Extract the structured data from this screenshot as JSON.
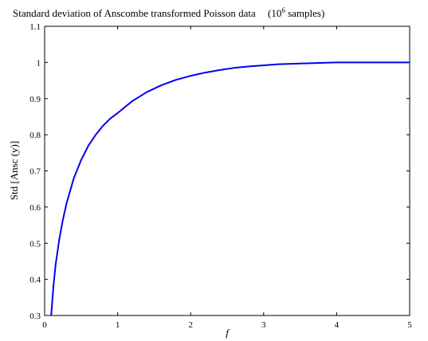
{
  "chart_data": {
    "type": "line",
    "title": "Standard deviation of Anscombe transformed Poisson data",
    "title_note": "(10",
    "title_note_sup": "6",
    "title_note_tail": " samples)",
    "xlabel": "f",
    "ylabel": "Std [Ansc (y)]",
    "xlim": [
      0,
      5
    ],
    "ylim": [
      0.3,
      1.1
    ],
    "grid": false,
    "box": true,
    "x_ticks": [
      0,
      1,
      2,
      3,
      4,
      5
    ],
    "x_tick_labels": [
      "0",
      "1",
      "2",
      "3",
      "4",
      "5"
    ],
    "y_ticks": [
      0.3,
      0.4,
      0.5,
      0.6,
      0.7,
      0.8,
      0.9,
      1.0,
      1.1
    ],
    "y_tick_labels": [
      "0.3",
      "0.4",
      "0.5",
      "0.6",
      "0.7",
      "0.8",
      "0.9",
      "1",
      "1.1"
    ],
    "series": [
      {
        "color": "#0000ee",
        "x": [
          0.09,
          0.12,
          0.15,
          0.2,
          0.25,
          0.3,
          0.4,
          0.5,
          0.6,
          0.7,
          0.8,
          0.9,
          1.0,
          1.2,
          1.4,
          1.6,
          1.8,
          2.0,
          2.2,
          2.4,
          2.6,
          2.8,
          3.0,
          3.2,
          3.5,
          3.8,
          4.0,
          4.3,
          4.6,
          5.0
        ],
        "y": [
          0.3,
          0.38,
          0.44,
          0.51,
          0.565,
          0.61,
          0.68,
          0.73,
          0.77,
          0.8,
          0.825,
          0.845,
          0.86,
          0.893,
          0.918,
          0.937,
          0.952,
          0.963,
          0.972,
          0.979,
          0.985,
          0.989,
          0.992,
          0.995,
          0.997,
          0.999,
          1.0,
          1.0,
          1.0,
          1.0
        ]
      }
    ]
  }
}
